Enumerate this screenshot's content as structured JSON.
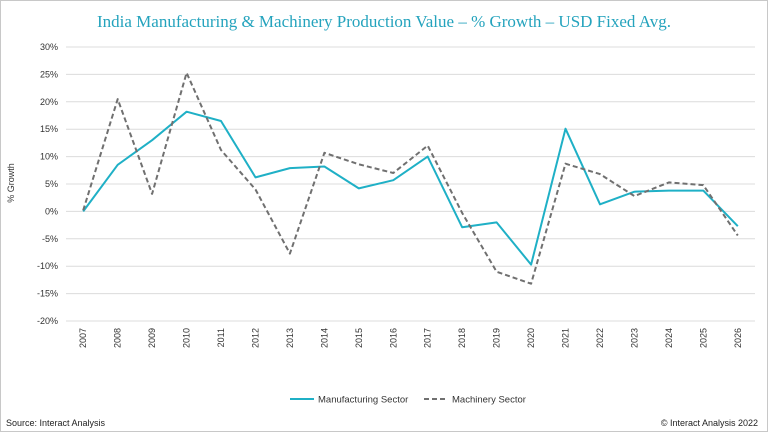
{
  "title": "India Manufacturing & Machinery Production Value – % Growth – USD Fixed Avg.",
  "footer": {
    "source": "Source: Interact Analysis",
    "copyright": "© Interact Analysis 2022"
  },
  "chart_data": {
    "type": "line",
    "title": "India Manufacturing & Machinery Production Value – % Growth – USD Fixed Avg.",
    "xlabel": "",
    "ylabel": "% Growth",
    "ylim": [
      -20,
      30
    ],
    "y_step": 5,
    "grid": true,
    "legend_position": "bottom-center",
    "categories": [
      "2007",
      "2008",
      "2009",
      "2010",
      "2011",
      "2012",
      "2013",
      "2014",
      "2015",
      "2016",
      "2017",
      "2018",
      "2019",
      "2020",
      "2021",
      "2022",
      "2023",
      "2024",
      "2025",
      "2026"
    ],
    "series": [
      {
        "name": "Manufacturing Sector",
        "color": "#1fb0c6",
        "style": "solid",
        "values": [
          0,
          8.5,
          13,
          18.2,
          16.5,
          6.2,
          7.9,
          8.2,
          4.2,
          5.7,
          10,
          -2.9,
          -2,
          -9.7,
          15.1,
          1.3,
          3.6,
          3.8,
          3.8,
          -2.7
        ]
      },
      {
        "name": "Machinery Sector",
        "color": "#707070",
        "style": "dashed",
        "values": [
          0.2,
          20.5,
          3.2,
          25.3,
          11.2,
          4,
          -7.7,
          10.7,
          8.6,
          7,
          12,
          -0.3,
          -11,
          -13.2,
          8.7,
          6.8,
          2.8,
          5.3,
          4.8,
          -4.4
        ]
      }
    ]
  }
}
